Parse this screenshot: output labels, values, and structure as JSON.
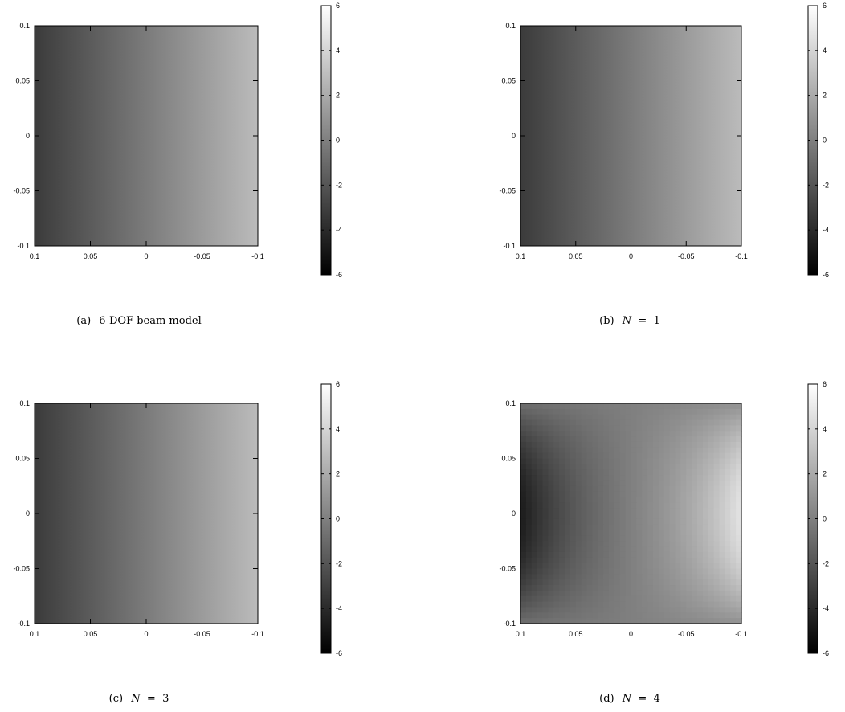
{
  "chart_data": [
    {
      "type": "heatmap",
      "caption_label": "(a)",
      "caption_text": "6-DOF beam model",
      "caption_math": null,
      "x_ticks": [
        "0.1",
        "0.05",
        "0",
        "-0.05",
        "-0.1"
      ],
      "y_ticks": [
        "0.1",
        "0.05",
        "0",
        "-0.05",
        "-0.1"
      ],
      "xlim": [
        0.1,
        -0.1
      ],
      "ylim": [
        -0.1,
        0.1
      ],
      "colorbar_ticks": [
        "6",
        "4",
        "2",
        "0",
        "-2",
        "-4",
        "-6"
      ],
      "colorbar_range": [
        -6,
        6
      ],
      "colormap": "grayscale",
      "field": "linear",
      "value_range": [
        -3.2,
        2.8
      ]
    },
    {
      "type": "heatmap",
      "caption_label": "(b)",
      "caption_text": "",
      "caption_math": {
        "var": "N",
        "op": " = ",
        "val": "1"
      },
      "x_ticks": [
        "0.1",
        "0.05",
        "0",
        "-0.05",
        "-0.1"
      ],
      "y_ticks": [
        "0.1",
        "0.05",
        "0",
        "-0.05",
        "-0.1"
      ],
      "xlim": [
        0.1,
        -0.1
      ],
      "ylim": [
        -0.1,
        0.1
      ],
      "colorbar_ticks": [
        "6",
        "4",
        "2",
        "0",
        "-2",
        "-4",
        "-6"
      ],
      "colorbar_range": [
        -6,
        6
      ],
      "colormap": "grayscale",
      "field": "linear",
      "value_range": [
        -3.2,
        2.8
      ]
    },
    {
      "type": "heatmap",
      "caption_label": "(c)",
      "caption_text": "",
      "caption_math": {
        "var": "N",
        "op": " = ",
        "val": "3"
      },
      "x_ticks": [
        "0.1",
        "0.05",
        "0",
        "-0.05",
        "-0.1"
      ],
      "y_ticks": [
        "0.1",
        "0.05",
        "0",
        "-0.05",
        "-0.1"
      ],
      "xlim": [
        0.1,
        -0.1
      ],
      "ylim": [
        -0.1,
        0.1
      ],
      "colorbar_ticks": [
        "6",
        "4",
        "2",
        "0",
        "-2",
        "-4",
        "-6"
      ],
      "colorbar_range": [
        -6,
        6
      ],
      "colormap": "grayscale",
      "field": "linear",
      "value_range": [
        -3.2,
        2.8
      ]
    },
    {
      "type": "heatmap",
      "caption_label": "(d)",
      "caption_text": "",
      "caption_math": {
        "var": "N",
        "op": " = ",
        "val": "4"
      },
      "x_ticks": [
        "0.1",
        "0.05",
        "0",
        "-0.05",
        "-0.1"
      ],
      "y_ticks": [
        "0.1",
        "0.05",
        "0",
        "-0.05",
        "-0.1"
      ],
      "xlim": [
        0.1,
        -0.1
      ],
      "ylim": [
        -0.1,
        0.1
      ],
      "colorbar_ticks": [
        "6",
        "4",
        "2",
        "0",
        "-2",
        "-4",
        "-6"
      ],
      "colorbar_range": [
        -6,
        6
      ],
      "colormap": "grayscale",
      "field": "saddle",
      "value_range": [
        -6,
        6
      ]
    }
  ]
}
